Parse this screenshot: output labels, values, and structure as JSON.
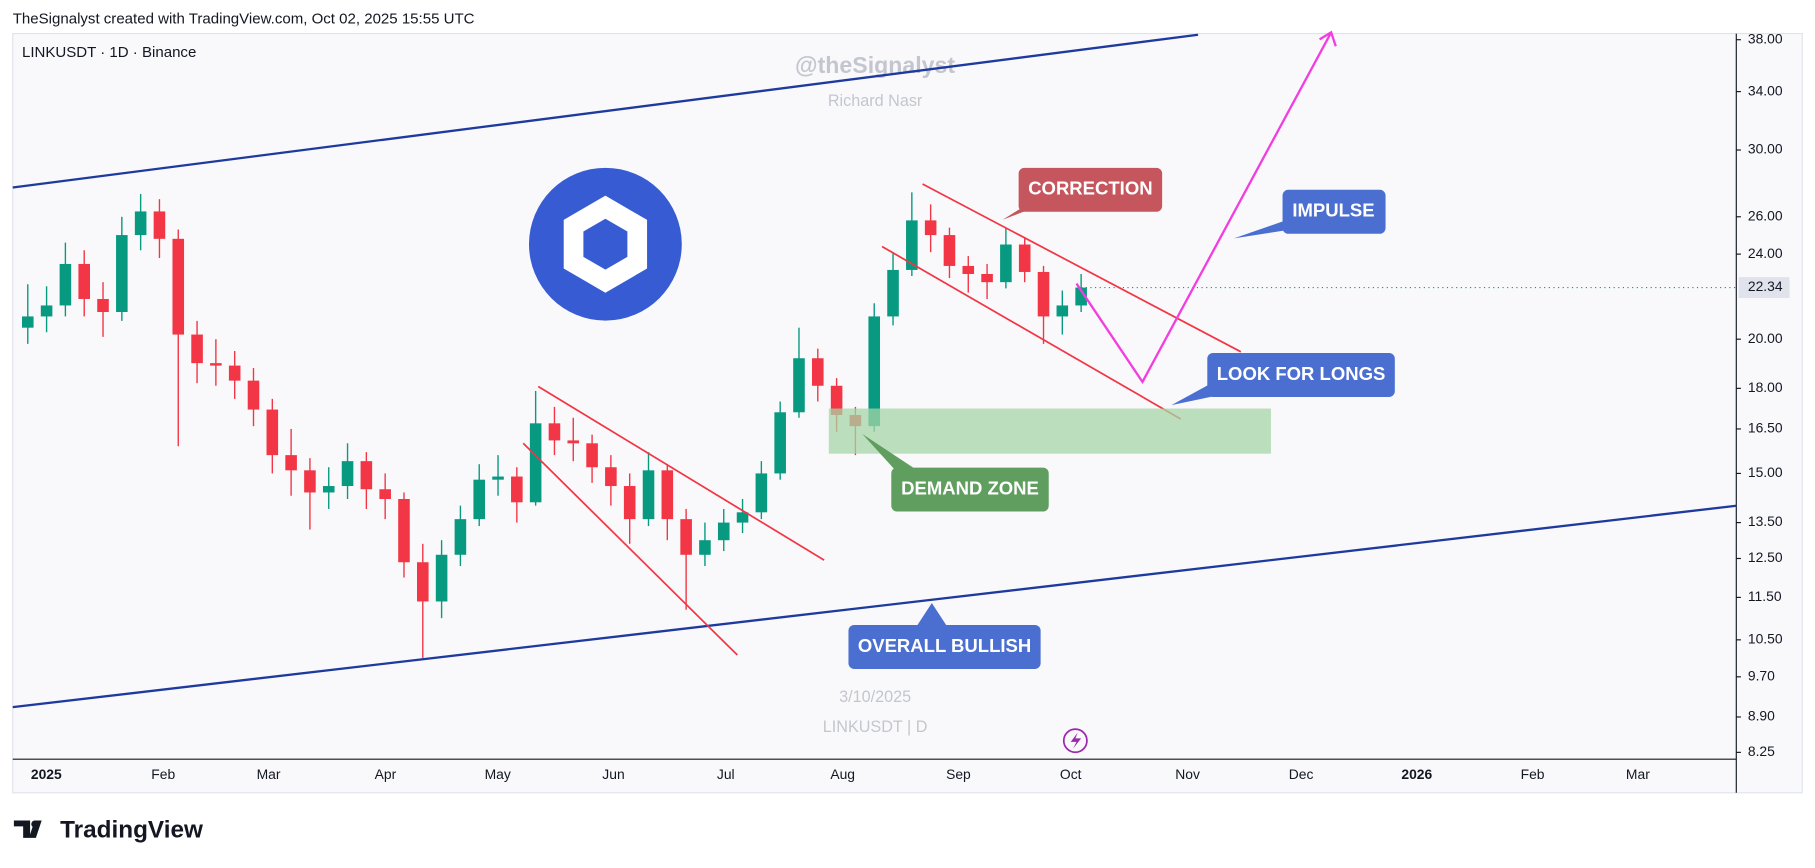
{
  "header": "TheSignalyst created with TradingView.com, Oct 02, 2025 15:55 UTC",
  "footer": "TradingView",
  "chart_data": {
    "type": "candlestick",
    "symbol": "LINKUSDT · 1D · Binance",
    "watermark": [
      "@theSignalyst",
      "Richard Nasr",
      "3/10/2025",
      "LINKUSDT | D"
    ],
    "annotations": [
      "CORRECTION",
      "IMPULSE",
      "LOOK FOR LONGS",
      "DEMAND ZONE",
      "OVERALL BULLISH"
    ],
    "categories": [
      null,
      null,
      null,
      null,
      null,
      null,
      null,
      null,
      null,
      null,
      null,
      null,
      null,
      null,
      null,
      null,
      null,
      null,
      null,
      null,
      null,
      null,
      null,
      null,
      null,
      null,
      null,
      null,
      null,
      null,
      null,
      null,
      null,
      null,
      null,
      null,
      null,
      null,
      null,
      null,
      null,
      null,
      null,
      null,
      null,
      null,
      null,
      null,
      null,
      null,
      null,
      null,
      null,
      null,
      null,
      null,
      null
    ],
    "open": [
      20.5,
      21.0,
      21.5,
      23.5,
      21.8,
      21.2,
      25.0,
      26.3,
      24.8,
      20.2,
      19.0,
      18.9,
      18.3,
      17.2,
      15.6,
      15.1,
      14.4,
      14.6,
      15.4,
      14.5,
      14.2,
      12.4,
      11.4,
      12.6,
      13.6,
      14.8,
      14.9,
      14.1,
      16.7,
      16.1,
      16.0,
      15.2,
      14.6,
      13.6,
      15.1,
      13.6,
      12.6,
      13.0,
      13.5,
      13.8,
      15.0,
      17.1,
      19.2,
      18.1,
      17.0,
      16.6,
      21.0,
      23.2,
      25.8,
      25.0,
      23.4,
      23.0,
      22.6,
      24.5,
      23.1,
      21.0,
      21.5
    ],
    "high": [
      22.5,
      22.4,
      24.6,
      24.2,
      22.6,
      26.0,
      27.3,
      27.0,
      25.3,
      20.8,
      20.0,
      19.5,
      18.8,
      17.6,
      16.5,
      15.5,
      15.2,
      16.0,
      15.7,
      15.0,
      14.4,
      12.9,
      13.0,
      14.0,
      15.3,
      15.6,
      15.2,
      17.9,
      17.3,
      16.9,
      16.3,
      15.6,
      15.0,
      15.7,
      15.3,
      13.9,
      13.5,
      13.9,
      14.2,
      15.4,
      17.5,
      20.5,
      19.6,
      18.4,
      17.3,
      21.6,
      24.1,
      27.4,
      26.7,
      25.4,
      23.9,
      23.5,
      25.4,
      24.9,
      23.4,
      22.2,
      23.0
    ],
    "low": [
      19.8,
      20.3,
      21.0,
      21.0,
      20.1,
      20.8,
      24.2,
      23.8,
      15.9,
      18.2,
      18.1,
      17.6,
      16.6,
      15.0,
      14.3,
      13.3,
      13.9,
      14.2,
      13.9,
      13.6,
      12.0,
      10.1,
      11.0,
      12.3,
      13.4,
      14.3,
      13.5,
      14.0,
      15.6,
      15.4,
      14.7,
      14.0,
      12.9,
      13.4,
      13.0,
      11.2,
      12.3,
      12.7,
      13.2,
      13.6,
      14.8,
      16.9,
      17.5,
      16.4,
      15.6,
      16.4,
      20.6,
      22.9,
      24.1,
      22.8,
      22.1,
      21.8,
      22.3,
      22.6,
      19.8,
      20.2,
      21.2
    ],
    "close": [
      21.0,
      21.5,
      23.5,
      21.8,
      21.2,
      25.0,
      26.3,
      24.8,
      20.2,
      19.0,
      18.9,
      18.3,
      17.2,
      15.6,
      15.1,
      14.4,
      14.6,
      15.4,
      14.5,
      14.2,
      12.4,
      11.4,
      12.6,
      13.6,
      14.8,
      14.9,
      14.1,
      16.7,
      16.1,
      16.0,
      15.2,
      14.6,
      13.6,
      15.1,
      13.6,
      12.6,
      13.0,
      13.5,
      13.8,
      15.0,
      17.1,
      19.2,
      18.1,
      17.0,
      16.6,
      21.0,
      23.2,
      25.8,
      25.0,
      23.4,
      23.0,
      22.6,
      24.5,
      23.1,
      21.0,
      21.5,
      22.34
    ],
    "up_color": "#089981",
    "down_color": "#f23645",
    "last_price": 22.34,
    "x_axis_labels": [
      "2025",
      "Feb",
      "Mar",
      "Apr",
      "May",
      "Jun",
      "Jul",
      "Aug",
      "Sep",
      "Oct",
      "Nov",
      "Dec",
      "2026",
      "Feb",
      "Mar"
    ],
    "log_scale": true,
    "grid": false,
    "ylim": [
      8.15,
      38.6
    ],
    "yticks": [
      {
        "value": 8.25,
        "label": "8.25"
      },
      {
        "value": 8.9,
        "label": "8.90"
      },
      {
        "value": 9.7,
        "label": "9.70"
      },
      {
        "value": 10.5,
        "label": "10.50"
      },
      {
        "value": 11.5,
        "label": "11.50"
      },
      {
        "value": 12.5,
        "label": "12.50"
      },
      {
        "value": 13.5,
        "label": "13.50"
      },
      {
        "value": 15,
        "label": "15.00"
      },
      {
        "value": 16.5,
        "label": "16.50"
      },
      {
        "value": 18,
        "label": "18.00"
      },
      {
        "value": 20,
        "label": "20.00"
      },
      {
        "value": 24,
        "label": "24.00"
      },
      {
        "value": 26,
        "label": "26.00"
      },
      {
        "value": 30,
        "label": "30.00"
      },
      {
        "value": 34,
        "label": "34.00"
      },
      {
        "value": 38,
        "label": "38.00"
      }
    ]
  }
}
